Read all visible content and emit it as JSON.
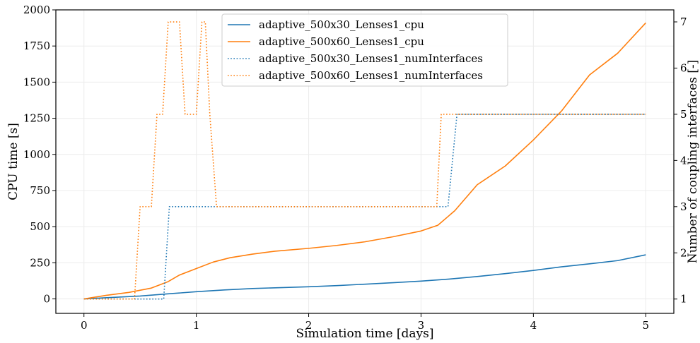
{
  "chart_data": {
    "type": "line",
    "xlabel": "Simulation time [days]",
    "ylabel_left": "CPU time [s]",
    "ylabel_right": "Number of coupling interfaces [-]",
    "xlim": [
      -0.25,
      5.25
    ],
    "ylim_left": [
      -100,
      2000
    ],
    "ylim_right": [
      0.69,
      7.26
    ],
    "xticks": [
      0,
      1,
      2,
      3,
      4,
      5
    ],
    "yticks_left": [
      0,
      250,
      500,
      750,
      1000,
      1250,
      1500,
      1750,
      2000
    ],
    "yticks_right": [
      1,
      2,
      3,
      4,
      5,
      6,
      7
    ],
    "grid": true,
    "legend_position": "top-center",
    "series": [
      {
        "name": "adaptive_500x30_Lenses1_cpu",
        "axis": "left",
        "style": "solid",
        "color": "#1f77b4",
        "x": [
          0,
          0.25,
          0.5,
          0.75,
          1.0,
          1.25,
          1.5,
          1.75,
          2.0,
          2.25,
          2.5,
          2.75,
          3.0,
          3.25,
          3.5,
          3.75,
          4.0,
          4.25,
          4.5,
          4.75,
          5.0
        ],
        "y": [
          0,
          10,
          20,
          35,
          50,
          62,
          72,
          78,
          84,
          92,
          102,
          112,
          123,
          137,
          155,
          175,
          197,
          222,
          243,
          265,
          305
        ]
      },
      {
        "name": "adaptive_500x60_Lenses1_cpu",
        "axis": "left",
        "style": "solid",
        "color": "#ff7f0e",
        "x": [
          0,
          0.2,
          0.4,
          0.6,
          0.75,
          0.85,
          1.0,
          1.15,
          1.3,
          1.5,
          1.7,
          2.0,
          2.25,
          2.5,
          2.75,
          3.0,
          3.15,
          3.3,
          3.5,
          3.75,
          4.0,
          4.25,
          4.5,
          4.75,
          5.0
        ],
        "y": [
          0,
          25,
          45,
          75,
          120,
          165,
          210,
          255,
          285,
          310,
          330,
          350,
          370,
          395,
          430,
          470,
          510,
          610,
          790,
          920,
          1100,
          1300,
          1550,
          1700,
          1910
        ]
      },
      {
        "name": "adaptive_500x30_Lenses1_numInterfaces",
        "axis": "right",
        "style": "dotted",
        "color": "#1f77b4",
        "x": [
          0,
          0.71,
          0.76,
          3.24,
          3.32,
          5.0
        ],
        "y": [
          1,
          1,
          3,
          3,
          5,
          5
        ]
      },
      {
        "name": "adaptive_500x60_Lenses1_numInterfaces",
        "axis": "right",
        "style": "dotted",
        "color": "#ff7f0e",
        "x": [
          0,
          0.45,
          0.5,
          0.6,
          0.65,
          0.7,
          0.75,
          0.85,
          0.9,
          1.0,
          1.05,
          1.08,
          1.12,
          1.18,
          3.14,
          3.18,
          5.0
        ],
        "y": [
          1,
          1,
          3,
          3,
          5,
          5,
          7,
          7,
          5,
          5,
          7,
          7,
          5,
          3,
          3,
          5,
          5
        ]
      }
    ]
  }
}
